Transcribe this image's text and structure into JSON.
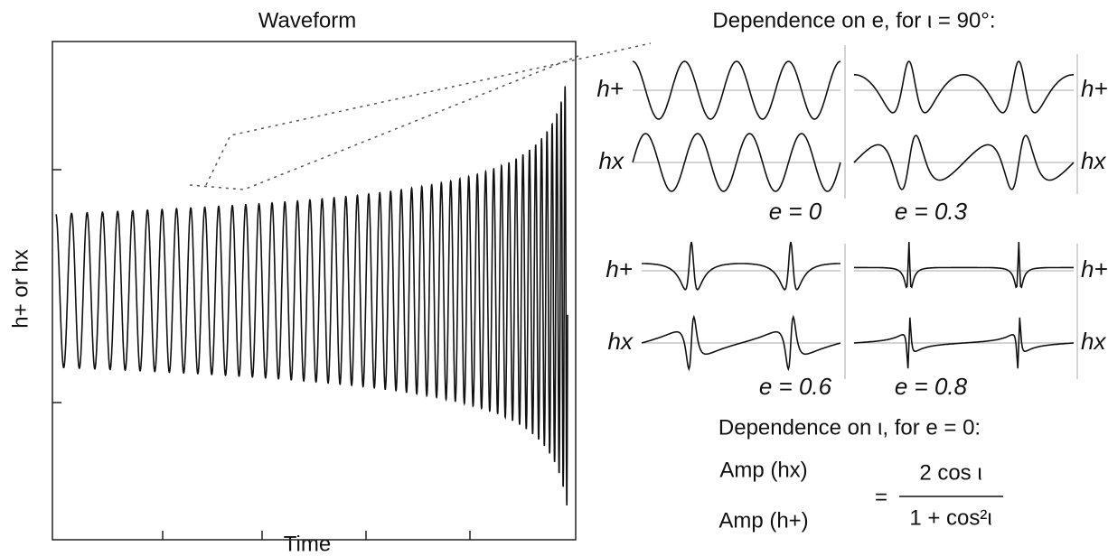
{
  "waveform": {
    "title": "Waveform",
    "x_label": "Time",
    "y_label": "h+ or hx"
  },
  "eccentricity": {
    "title": "Dependence on e, for ι = 90°:",
    "panels": [
      {
        "label": "e = 0",
        "plus": "h+",
        "cross": "hx"
      },
      {
        "label": "e = 0.3",
        "plus": "h+",
        "cross": "hx"
      },
      {
        "label": "e = 0.6",
        "plus": "h+",
        "cross": "hx"
      },
      {
        "label": "e = 0.8",
        "plus": "h+",
        "cross": "hx"
      }
    ]
  },
  "inclination": {
    "title": "Dependence on ι, for e = 0:",
    "numerator_left": "Amp (hx)",
    "denominator_left": "Amp (h+)",
    "equals": "=",
    "numerator_right": "2 cos ι",
    "denominator_right": "1 + cos²ι"
  }
}
